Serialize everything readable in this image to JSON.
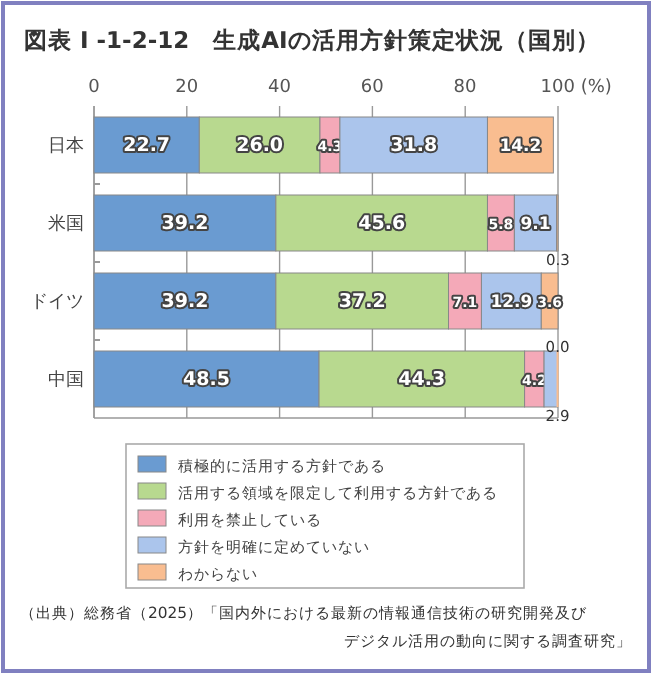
{
  "chart_data": {
    "type": "bar",
    "orientation": "horizontal",
    "stacked": true,
    "title": "図表 I -1-2-12　生成AIの活用方針策定状況（国別）",
    "categories": [
      "日本",
      "米国",
      "ドイツ",
      "中国"
    ],
    "series": [
      {
        "name": "積極的に活用する方針である",
        "color": "#6a9bd1",
        "values": [
          22.7,
          39.2,
          39.2,
          48.5
        ],
        "value_labels": [
          "22.7",
          "39.2",
          "39.2",
          "48.5"
        ]
      },
      {
        "name": "活用する領域を限定して利用する方針である",
        "color": "#b8d98f",
        "values": [
          26.0,
          45.6,
          37.2,
          44.3
        ],
        "value_labels": [
          "26.0",
          "45.6",
          "37.2",
          "44.3"
        ]
      },
      {
        "name": "利用を禁止している",
        "color": "#f4a9b8",
        "values": [
          4.3,
          5.8,
          7.1,
          4.2
        ],
        "value_labels": [
          "4.3",
          "5.8",
          "7.1",
          "4.2"
        ]
      },
      {
        "name": "方針を明確に定めていない",
        "color": "#abc5ec",
        "values": [
          31.8,
          9.1,
          12.9,
          2.9
        ],
        "value_labels": [
          "31.8",
          "9.1",
          "12.9",
          "2.9"
        ]
      },
      {
        "name": "わからない",
        "color": "#f9bd90",
        "values": [
          14.2,
          0.3,
          3.6,
          0.0
        ],
        "value_labels": [
          "14.2",
          "0.3",
          "3.6",
          "0.0"
        ]
      }
    ],
    "xlim": [
      0,
      100
    ],
    "xticks": [
      0,
      20,
      40,
      60,
      80,
      {
        "value": 100,
        "label": "100 (%)"
      }
    ],
    "grid": "x",
    "legend": "bottom",
    "annotations": [
      "（出典）総務省（2025）「国内外における最新の情報通信技術の研究開発及び",
      "デジタル活用の動向に関する調査研究」"
    ]
  }
}
